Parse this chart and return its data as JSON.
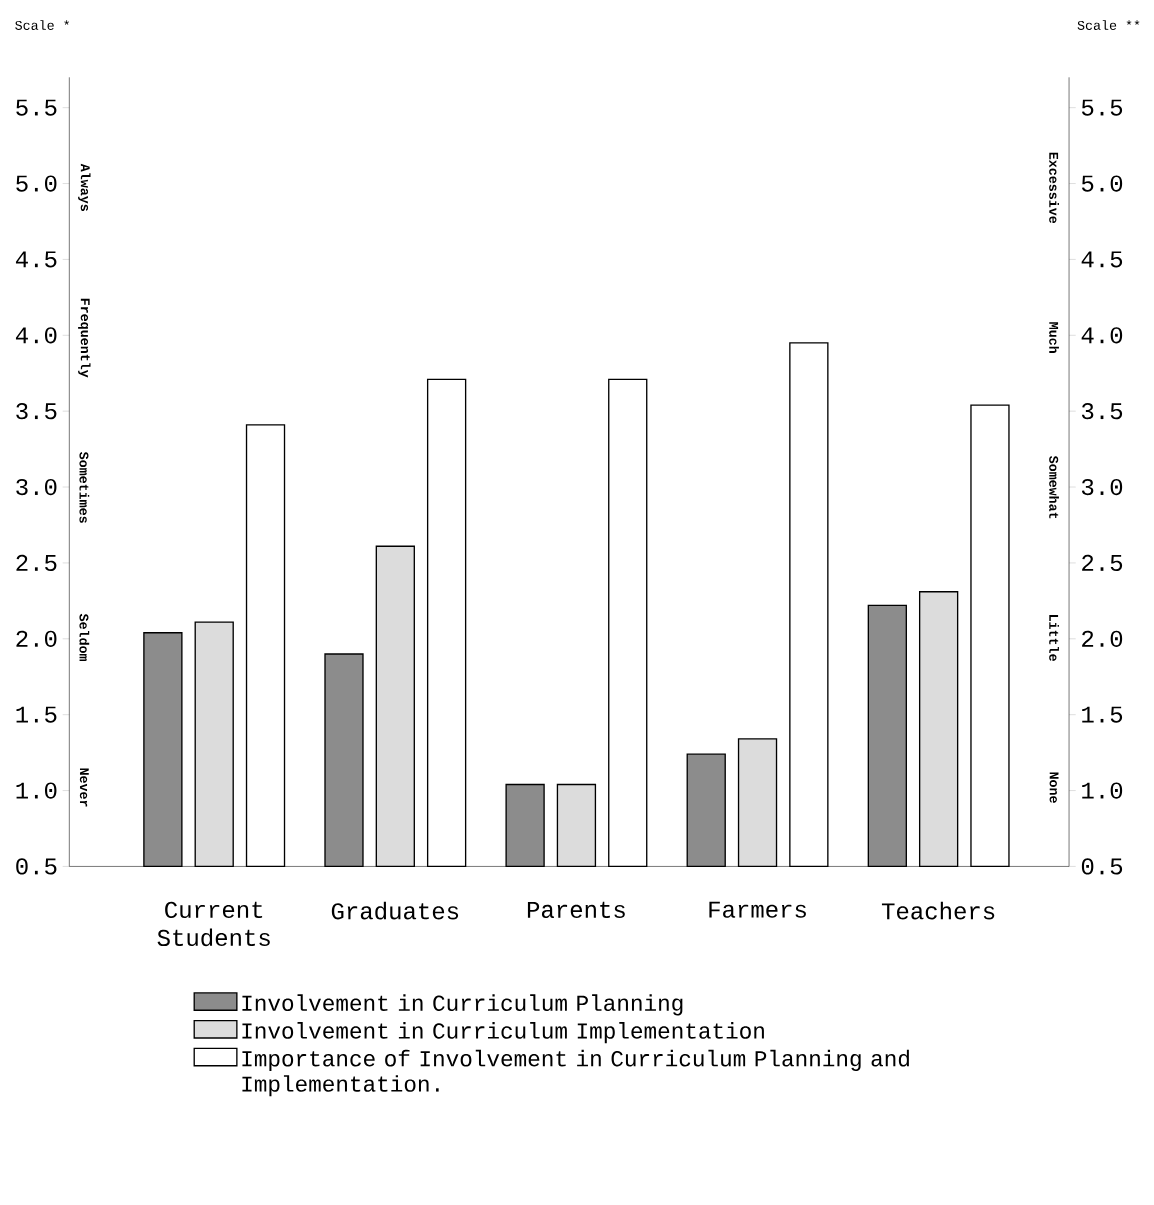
{
  "chart_data": {
    "type": "bar",
    "ylabel": "Scale *",
    "y2label": "Scale **",
    "categories": [
      "Current Students",
      "Graduates",
      "Parents",
      "Farmers",
      "Teachers"
    ],
    "series": [
      {
        "name": "Involvement in Curriculum Planning",
        "color": "#8c8c8c",
        "values": [
          2.04,
          1.9,
          1.04,
          1.24,
          2.22
        ]
      },
      {
        "name": "Involvement in Curriculum Implementation",
        "color": "#dcdcdc",
        "values": [
          2.11,
          2.61,
          1.04,
          1.34,
          2.31
        ]
      },
      {
        "name": "Importance of Involvement in Curriculum Planning and Implementation.",
        "color": "#ffffff",
        "values": [
          3.41,
          3.71,
          3.71,
          3.95,
          3.54
        ]
      }
    ],
    "ylim": [
      0.5,
      5.7
    ],
    "yticks": [
      {
        "value": 0.5,
        "label": "0.5"
      },
      {
        "value": 1,
        "label": "1.0"
      },
      {
        "value": 1.5,
        "label": "1.5"
      },
      {
        "value": 2,
        "label": "2.0"
      },
      {
        "value": 2.5,
        "label": "2.5"
      },
      {
        "value": 3,
        "label": "3.0"
      },
      {
        "value": 3.5,
        "label": "3.5"
      },
      {
        "value": 4,
        "label": "4.0"
      },
      {
        "value": 4.5,
        "label": "4.5"
      },
      {
        "value": 5,
        "label": "5.0"
      },
      {
        "value": 5.5,
        "label": "5.5"
      }
    ],
    "y2lim": [
      0.5,
      5.7
    ],
    "y2ticks": [
      {
        "value": 0.5,
        "label": "0.5"
      },
      {
        "value": 1,
        "label": "1.0"
      },
      {
        "value": 1.5,
        "label": "1.5"
      },
      {
        "value": 2,
        "label": "2.0"
      },
      {
        "value": 2.5,
        "label": "2.5"
      },
      {
        "value": 3,
        "label": "3.0"
      },
      {
        "value": 3.5,
        "label": "3.5"
      },
      {
        "value": 4,
        "label": "4.0"
      },
      {
        "value": 4.5,
        "label": "4.5"
      },
      {
        "value": 5,
        "label": "5.0"
      },
      {
        "value": 5.5,
        "label": "5.5"
      }
    ],
    "annotations": [
      "Always",
      "Frequently",
      "Sometimes",
      "Seldom",
      "Never",
      "Excessive",
      "Much",
      "Somewhat",
      "Little",
      "None"
    ],
    "legend": "bottom",
    "grid": false
  }
}
